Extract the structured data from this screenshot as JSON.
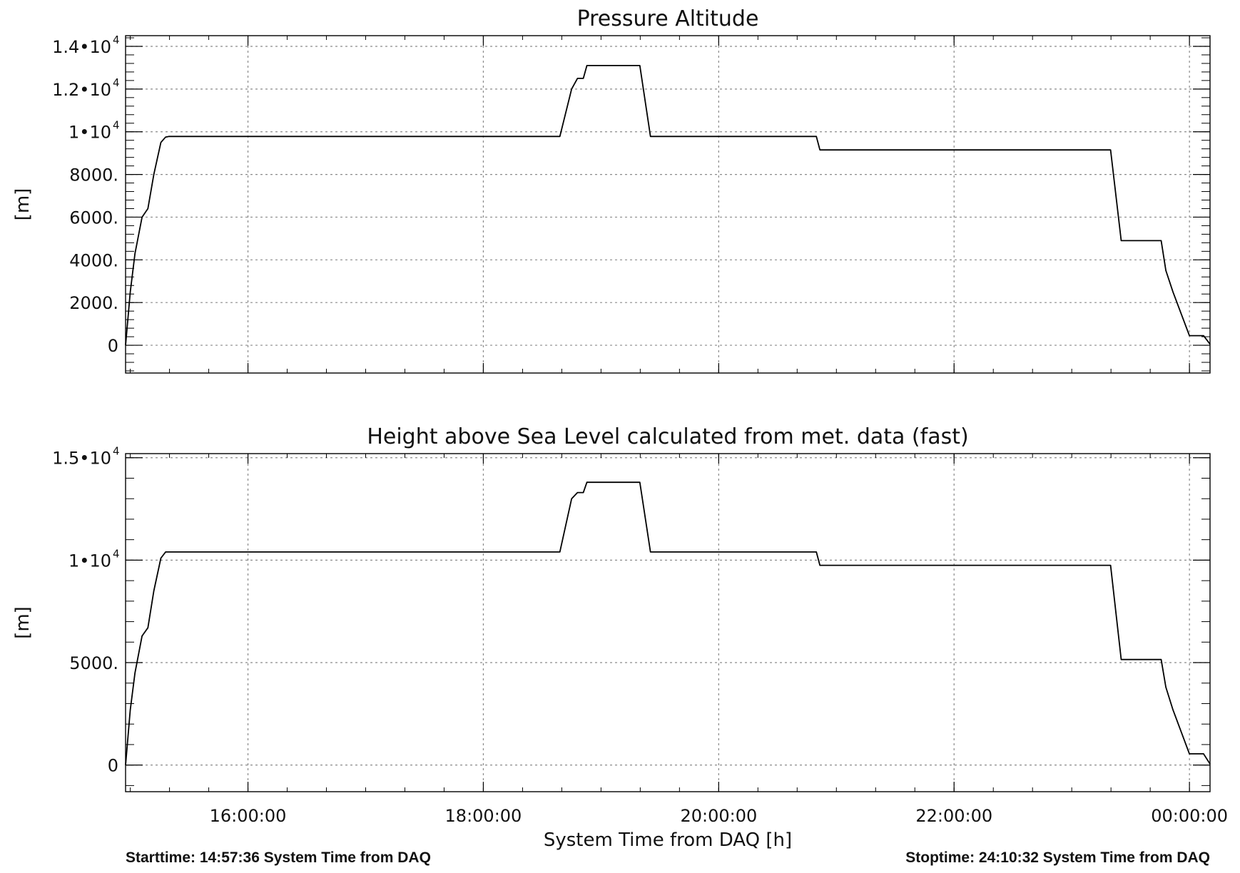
{
  "chart_data": [
    {
      "type": "line",
      "title": "Pressure Altitude",
      "ylabel": "[m]",
      "xlabel": "",
      "xlim": [
        14.96,
        24.175
      ],
      "ylim": [
        -1300,
        14500
      ],
      "grid": true,
      "x_ticks": [
        {
          "value": 16,
          "label": ""
        },
        {
          "value": 18,
          "label": ""
        },
        {
          "value": 20,
          "label": ""
        },
        {
          "value": 22,
          "label": ""
        },
        {
          "value": 24,
          "label": ""
        }
      ],
      "y_ticks": [
        {
          "value": 0,
          "label": "0",
          "exp": ""
        },
        {
          "value": 2000,
          "label": "2000.",
          "exp": ""
        },
        {
          "value": 4000,
          "label": "4000.",
          "exp": ""
        },
        {
          "value": 6000,
          "label": "6000.",
          "exp": ""
        },
        {
          "value": 8000,
          "label": "8000.",
          "exp": ""
        },
        {
          "value": 10000,
          "label": "1•10",
          "exp": "4"
        },
        {
          "value": 12000,
          "label": "1.2•10",
          "exp": "4"
        },
        {
          "value": 14000,
          "label": "1.4•10",
          "exp": "4"
        }
      ],
      "series": [
        {
          "x": [
            14.96,
            15.0,
            15.04,
            15.1,
            15.15,
            15.2,
            15.26,
            15.3,
            15.33,
            18.65,
            18.75,
            18.8,
            18.85,
            18.88,
            19.33,
            19.42,
            20.83,
            20.86,
            23.33,
            23.42,
            23.76,
            23.8,
            23.86,
            24.0,
            24.04,
            24.12,
            24.175
          ],
          "y": [
            0,
            2500,
            4300,
            6000,
            6400,
            8000,
            9500,
            9750,
            9780,
            9780,
            12000,
            12500,
            12500,
            13100,
            13100,
            9780,
            9780,
            9150,
            9150,
            4900,
            4900,
            3500,
            2500,
            450,
            450,
            450,
            50
          ]
        }
      ]
    },
    {
      "type": "line",
      "title": "Height above Sea Level calculated from met. data (fast)",
      "ylabel": "[m]",
      "xlabel": "System Time from DAQ [h]",
      "xlim": [
        14.96,
        24.175
      ],
      "ylim": [
        -1300,
        15200
      ],
      "grid": true,
      "x_ticks": [
        {
          "value": 16,
          "label": "16:00:00"
        },
        {
          "value": 18,
          "label": "18:00:00"
        },
        {
          "value": 20,
          "label": "20:00:00"
        },
        {
          "value": 22,
          "label": "22:00:00"
        },
        {
          "value": 24,
          "label": "00:00:00"
        }
      ],
      "y_ticks": [
        {
          "value": 0,
          "label": "0",
          "exp": ""
        },
        {
          "value": 5000,
          "label": "5000.",
          "exp": ""
        },
        {
          "value": 10000,
          "label": "1•10",
          "exp": "4"
        },
        {
          "value": 15000,
          "label": "1.5•10",
          "exp": "4"
        }
      ],
      "series": [
        {
          "x": [
            14.96,
            15.0,
            15.04,
            15.1,
            15.15,
            15.2,
            15.26,
            15.3,
            15.33,
            18.65,
            18.75,
            18.8,
            18.85,
            18.88,
            19.33,
            19.42,
            20.83,
            20.86,
            23.33,
            23.42,
            23.76,
            23.8,
            23.86,
            24.0,
            24.04,
            24.12,
            24.175
          ],
          "y": [
            0,
            2700,
            4500,
            6300,
            6700,
            8500,
            10100,
            10400,
            10400,
            10400,
            13000,
            13300,
            13300,
            13800,
            13800,
            10400,
            10400,
            9750,
            9750,
            5150,
            5150,
            3800,
            2700,
            550,
            550,
            550,
            50
          ]
        }
      ]
    }
  ],
  "footer": {
    "start": "Starttime: 14:57:36 System Time from DAQ",
    "stop": "Stoptime: 24:10:32 System Time from DAQ"
  }
}
